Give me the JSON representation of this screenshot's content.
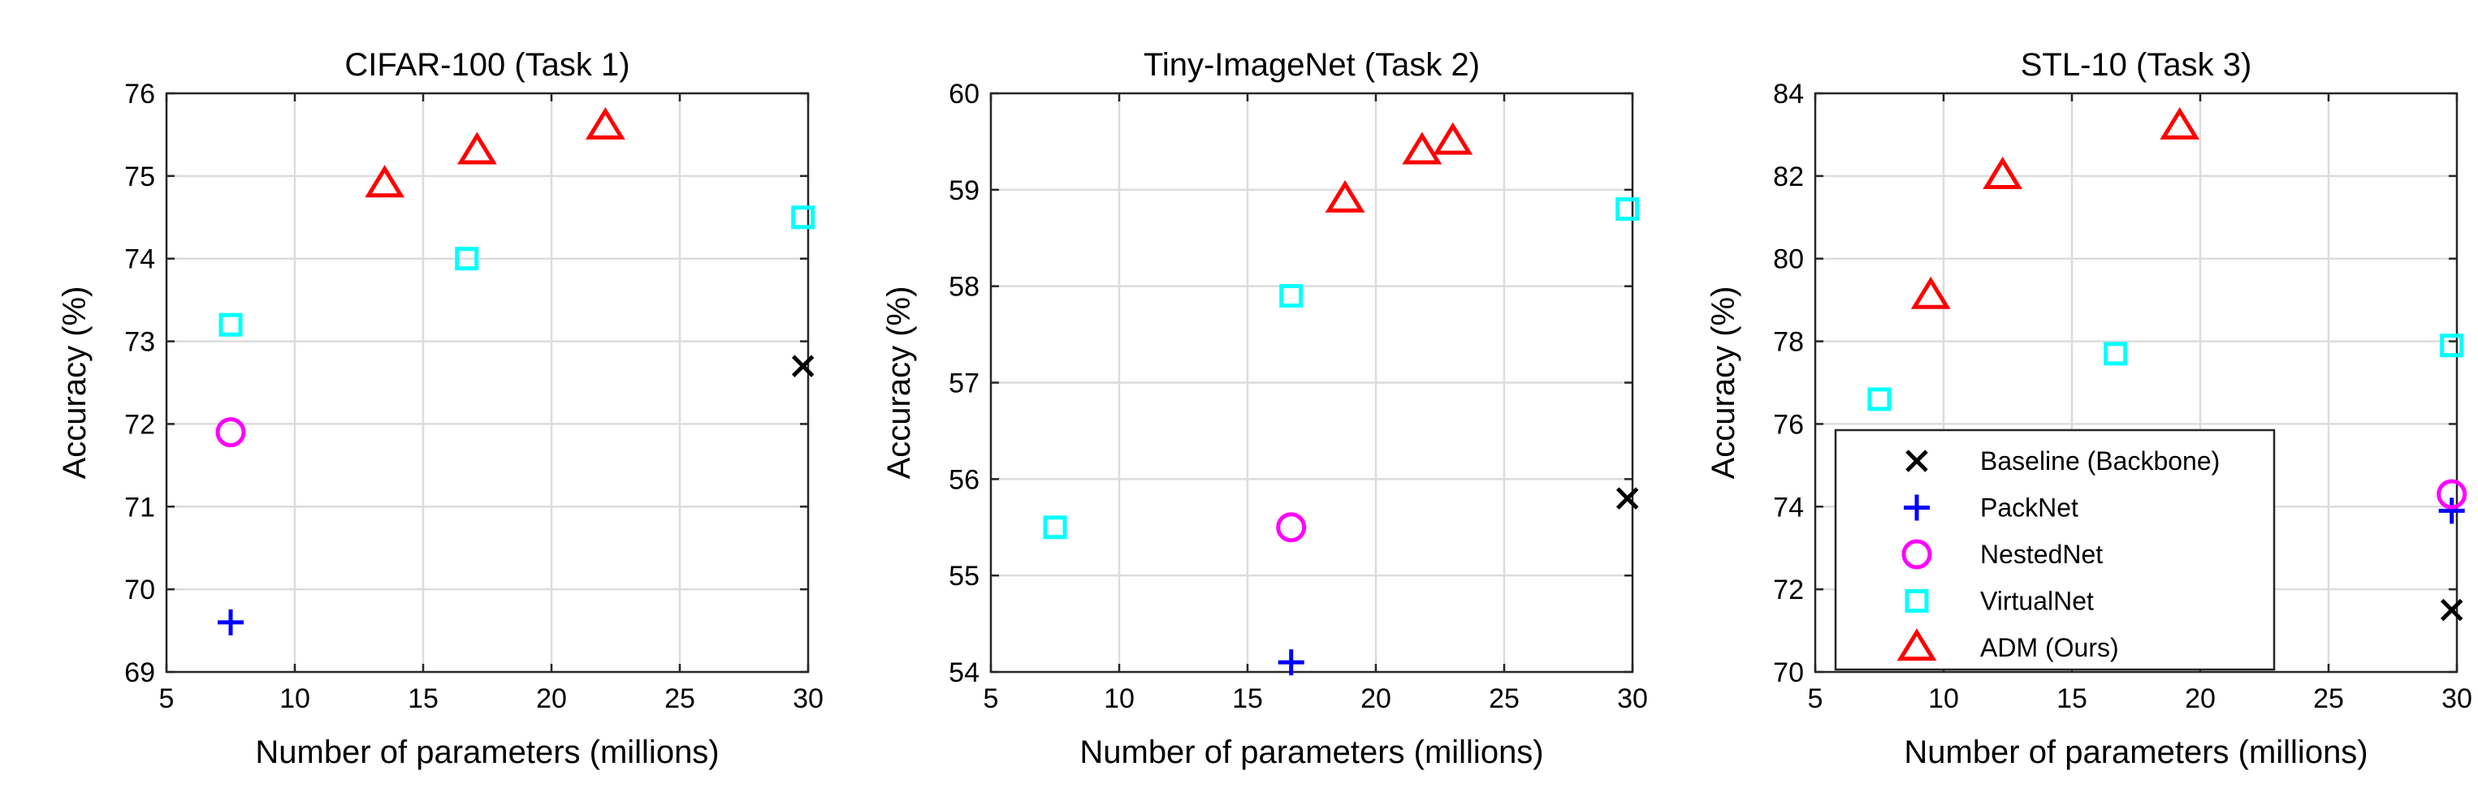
{
  "colors": {
    "Baseline (Backbone)": "#000000",
    "PackNet": "#0000ff",
    "NestedNet": "#ff00ff",
    "VirtualNet": "#00ffff",
    "ADM (Ours)": "#ff0000"
  },
  "legend": {
    "placement": "bottom-right of third panel",
    "entries": [
      {
        "label": "Baseline (Backbone)",
        "marker": "x"
      },
      {
        "label": "PackNet",
        "marker": "plus"
      },
      {
        "label": "NestedNet",
        "marker": "circle"
      },
      {
        "label": "VirtualNet",
        "marker": "square"
      },
      {
        "label": "ADM (Ours)",
        "marker": "triangle"
      }
    ]
  },
  "chart_data": [
    {
      "type": "scatter",
      "title": "CIFAR-100 (Task 1)",
      "xlabel": "Number of parameters (millions)",
      "ylabel": "Accuracy (%)",
      "xlim": [
        5,
        30
      ],
      "ylim": [
        69,
        76
      ],
      "xticks": [
        5,
        10,
        15,
        20,
        25,
        30
      ],
      "yticks": [
        69,
        70,
        71,
        72,
        73,
        74,
        75,
        76
      ],
      "grid": true,
      "series": [
        {
          "name": "Baseline (Backbone)",
          "marker": "x",
          "points": [
            [
              29.8,
              72.7
            ]
          ]
        },
        {
          "name": "PackNet",
          "marker": "plus",
          "points": [
            [
              7.5,
              69.6
            ]
          ]
        },
        {
          "name": "NestedNet",
          "marker": "circle",
          "points": [
            [
              7.5,
              71.9
            ]
          ]
        },
        {
          "name": "VirtualNet",
          "marker": "square",
          "points": [
            [
              7.5,
              73.2
            ],
            [
              16.7,
              74.0
            ],
            [
              29.8,
              74.5
            ]
          ]
        },
        {
          "name": "ADM (Ours)",
          "marker": "triangle",
          "points": [
            [
              13.5,
              74.9
            ],
            [
              17.1,
              75.3
            ],
            [
              22.1,
              75.6
            ]
          ]
        }
      ]
    },
    {
      "type": "scatter",
      "title": "Tiny-ImageNet (Task 2)",
      "xlabel": "Number of parameters (millions)",
      "ylabel": "Accuracy (%)",
      "xlim": [
        5,
        30
      ],
      "ylim": [
        54,
        60
      ],
      "xticks": [
        5,
        10,
        15,
        20,
        25,
        30
      ],
      "yticks": [
        54,
        55,
        56,
        57,
        58,
        59,
        60
      ],
      "grid": true,
      "series": [
        {
          "name": "Baseline (Backbone)",
          "marker": "x",
          "points": [
            [
              29.8,
              55.8
            ]
          ]
        },
        {
          "name": "PackNet",
          "marker": "plus",
          "points": [
            [
              16.7,
              54.1
            ]
          ]
        },
        {
          "name": "NestedNet",
          "marker": "circle",
          "points": [
            [
              16.7,
              55.5
            ]
          ]
        },
        {
          "name": "VirtualNet",
          "marker": "square",
          "points": [
            [
              7.5,
              55.5
            ],
            [
              16.7,
              57.9
            ],
            [
              29.8,
              58.8
            ]
          ]
        },
        {
          "name": "ADM (Ours)",
          "marker": "triangle",
          "points": [
            [
              18.8,
              58.9
            ],
            [
              21.8,
              59.4
            ],
            [
              23.0,
              59.5
            ]
          ]
        }
      ]
    },
    {
      "type": "scatter",
      "title": "STL-10 (Task 3)",
      "xlabel": "Number of parameters (millions)",
      "ylabel": "Accuracy (%)",
      "xlim": [
        5,
        30
      ],
      "ylim": [
        70,
        84
      ],
      "xticks": [
        5,
        10,
        15,
        20,
        25,
        30
      ],
      "yticks": [
        70,
        72,
        74,
        76,
        78,
        80,
        82,
        84
      ],
      "grid": true,
      "series": [
        {
          "name": "Baseline (Backbone)",
          "marker": "x",
          "points": [
            [
              29.8,
              71.5
            ]
          ]
        },
        {
          "name": "PackNet",
          "marker": "plus",
          "points": [
            [
              29.8,
              73.9
            ]
          ]
        },
        {
          "name": "NestedNet",
          "marker": "circle",
          "points": [
            [
              29.8,
              74.3
            ]
          ]
        },
        {
          "name": "VirtualNet",
          "marker": "square",
          "points": [
            [
              7.5,
              76.6
            ],
            [
              16.7,
              77.7
            ],
            [
              29.8,
              77.9
            ]
          ]
        },
        {
          "name": "ADM (Ours)",
          "marker": "triangle",
          "points": [
            [
              9.5,
              79.1
            ],
            [
              12.3,
              82.0
            ],
            [
              19.2,
              83.2
            ]
          ]
        }
      ]
    }
  ]
}
